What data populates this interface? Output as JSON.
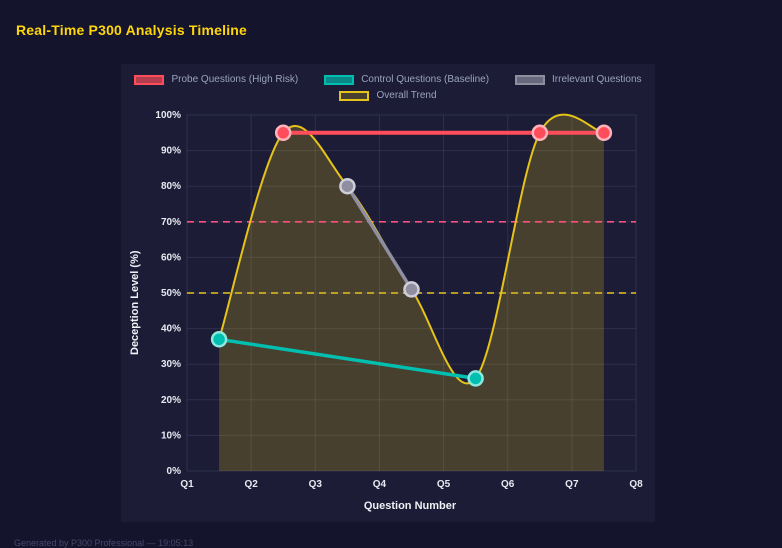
{
  "page": {
    "title": "Real-Time P300 Analysis Timeline"
  },
  "footer": {
    "text": "Generated by P300 Professional — 19:05:13"
  },
  "chart_data": {
    "type": "line",
    "title": "Real-Time P300 Analysis Timeline",
    "xlabel": "Question Number",
    "ylabel": "Deception Level (%)",
    "x_ticks": [
      "Q1",
      "Q2",
      "Q3",
      "Q4",
      "Q5",
      "Q6",
      "Q7",
      "Q8"
    ],
    "xlim": [
      1,
      8
    ],
    "ylim": [
      0,
      100
    ],
    "y_ticks": [
      "0%",
      "10%",
      "20%",
      "30%",
      "40%",
      "50%",
      "60%",
      "70%",
      "80%",
      "90%",
      "100%"
    ],
    "y_tick_step": 10,
    "grid": true,
    "legend_position": "top",
    "series": [
      {
        "name": "Probe Questions (High Risk)",
        "color": "#ff4d5c",
        "ring": "#ffb3bb",
        "x": [
          2.5,
          6.5,
          7.5
        ],
        "values": [
          95,
          95,
          95
        ],
        "line_width": 4
      },
      {
        "name": "Control Questions (Baseline)",
        "color": "#00bfb0",
        "ring": "#8ce8de",
        "x": [
          1.5,
          5.5
        ],
        "values": [
          37,
          26
        ],
        "line_width": 3.5
      },
      {
        "name": "Irrelevant Questions",
        "color": "#8e8e9f",
        "ring": "#cfcfdb",
        "x": [
          3.5,
          4.5
        ],
        "values": [
          80,
          51
        ],
        "line_width": 3.5
      },
      {
        "name": "Overall Trend",
        "color": "#e6c319",
        "x": [
          1.5,
          2.5,
          3.5,
          4.5,
          5.5,
          6.5,
          7.5
        ],
        "values": [
          37,
          95,
          80,
          51,
          26,
          95,
          95
        ],
        "smooth": true,
        "area": true,
        "area_fill": "rgba(230,195,25,0.22)",
        "line_width": 2,
        "no_points": true
      }
    ],
    "thresholds": [
      {
        "label": "high-risk-threshold",
        "value": 70,
        "color": "#ff4d7e"
      },
      {
        "label": "baseline-threshold",
        "value": 50,
        "color": "#e6c319"
      }
    ]
  }
}
